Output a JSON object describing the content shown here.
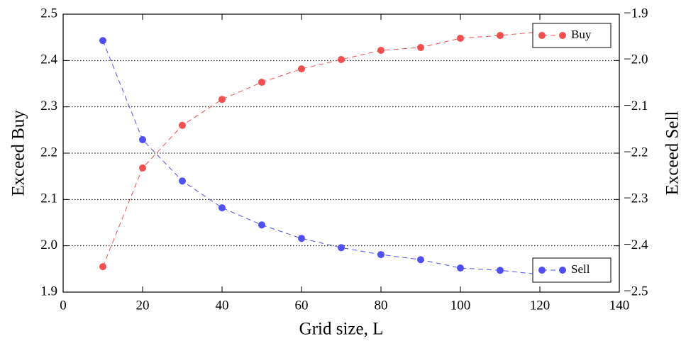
{
  "chart_data": {
    "type": "line",
    "xlabel": "Grid size, L",
    "ylabel": "Exceed Buy",
    "y2label": "Exceed Sell",
    "x": [
      10,
      20,
      30,
      40,
      50,
      60,
      70,
      80,
      90,
      100,
      110,
      120
    ],
    "series": [
      {
        "name": "Buy",
        "color": "#f25050",
        "axis": "y",
        "legend": "upper right",
        "values": [
          1.955,
          2.168,
          2.26,
          2.316,
          2.353,
          2.382,
          2.402,
          2.422,
          2.428,
          2.448,
          2.454,
          2.462
        ]
      },
      {
        "name": "Sell",
        "color": "#5050f2",
        "axis": "y2",
        "legend": "lower right",
        "values": [
          -1.957,
          -2.171,
          -2.26,
          -2.318,
          -2.355,
          -2.384,
          -2.404,
          -2.419,
          -2.43,
          -2.448,
          -2.453,
          -2.462
        ]
      }
    ],
    "xlim": [
      0,
      140
    ],
    "xticks": [
      0,
      20,
      40,
      60,
      80,
      100,
      120,
      140
    ],
    "ylim": [
      1.9,
      2.5
    ],
    "yticks": [
      1.9,
      {
        "value": 2.0,
        "label": "2.0"
      },
      2.1,
      2.2,
      2.3,
      2.4,
      2.5
    ],
    "y2lim": [
      -2.5,
      -1.9
    ],
    "y2ticks": [
      {
        "value": -2.5,
        "label": "−2.5"
      },
      {
        "value": -2.4,
        "label": "−2.4"
      },
      {
        "value": -2.3,
        "label": "−2.3"
      },
      {
        "value": -2.2,
        "label": "−2.2"
      },
      {
        "value": -2.1,
        "label": "−2.1"
      },
      {
        "value": -2.0,
        "label": "−2.0"
      },
      {
        "value": -1.9,
        "label": "−1.9"
      }
    ],
    "grid": true
  }
}
